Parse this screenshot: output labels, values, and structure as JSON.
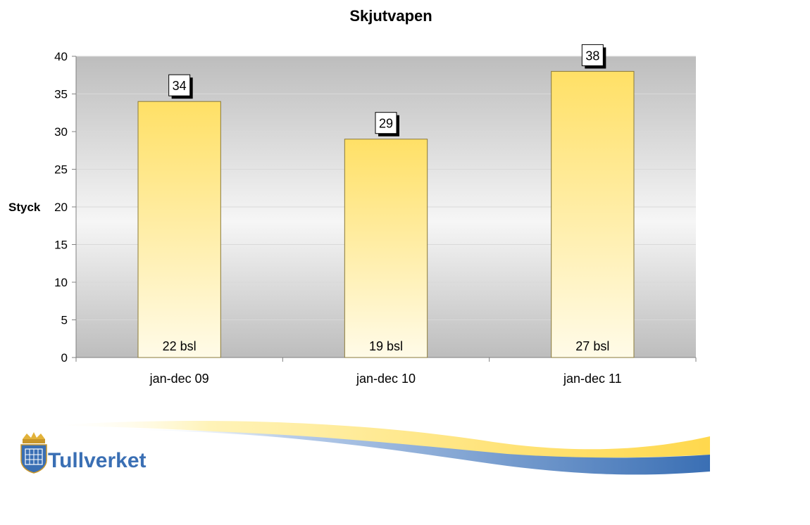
{
  "chart_data": {
    "type": "bar",
    "title": "Skjutvapen",
    "ylabel": "Styck",
    "xlabel": "",
    "categories": [
      "jan-dec 09",
      "jan-dec 10",
      "jan-dec 11"
    ],
    "values": [
      34,
      29,
      38
    ],
    "inner_labels": [
      "22 bsl",
      "19 bsl",
      "27 bsl"
    ],
    "ylim": [
      0,
      40
    ],
    "yticks": [
      0,
      5,
      10,
      15,
      20,
      25,
      30,
      35,
      40
    ],
    "grid": true,
    "legend": "none",
    "colors": {
      "bar_top": "#ffe066",
      "bar_bottom": "#fffbe8",
      "bar_stroke": "#8a7a3a",
      "plot_bg_top": "#c2c2c2",
      "plot_bg_mid": "#f4f4f4",
      "plot_bg_bottom": "#c2c2c2"
    }
  },
  "branding": {
    "logo_text": "Tullverket",
    "logo_color": "#3a6fb4",
    "crest_icon": "crest-icon",
    "swoosh_colors": [
      "#ffd84d",
      "#3a6fb4"
    ]
  }
}
